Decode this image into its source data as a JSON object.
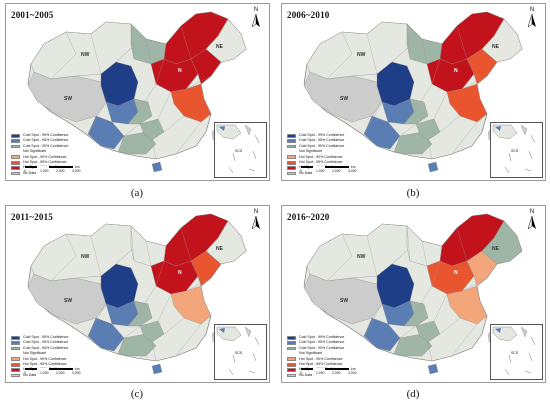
{
  "colors": {
    "cold99": "#1f3e88",
    "cold95": "#5a7db4",
    "cold90": "#9fb5a6",
    "notsig": "#e5e7e1",
    "hot90": "#f3a679",
    "hot95": "#e8552f",
    "hot99": "#c2121b",
    "nodata": "#cccccc",
    "border": "#8a8a8a",
    "ocean": "#ffffff"
  },
  "legend_labels": [
    "Cold Spot - 99% Confidence",
    "Cold Spot - 95% Confidence",
    "Cold Spot - 90% Confidence",
    "Not Significant",
    "Hot Spot - 90% Confidence",
    "Hot Spot - 95% Confidence",
    "Hot Spot - 99% Confidence",
    "No Data"
  ],
  "legend_keys": [
    "cold99",
    "cold95",
    "cold90",
    "notsig",
    "hot90",
    "hot95",
    "hot99",
    "nodata"
  ],
  "north_label": "N",
  "scale": {
    "ticks": [
      "0",
      "1,000",
      "2,000",
      "3,000"
    ],
    "unit": "km"
  },
  "region_labels": {
    "nw": "NW",
    "sw": "SW",
    "ne": "NE",
    "n": "N",
    "sea": "SCS"
  },
  "panels": [
    {
      "id": "a",
      "title": "2001~2005",
      "caption": "(a)",
      "regions": {
        "northwest": "notsig",
        "tibet": "nodata",
        "qinghai": "cold99",
        "sichuan_west": "cold95",
        "sichuan_east": "cold90",
        "inner_mongolia_mid": "cold90",
        "yunnan": "cold95",
        "guangxi": "cold90",
        "hainan": "cold95",
        "ne_core": "hot99",
        "north_plain": "hot99",
        "shandong": "hot99",
        "east_coast": "hot95",
        "central_patch": "cold90",
        "northeast_far": "notsig"
      }
    },
    {
      "id": "b",
      "title": "2006~2010",
      "caption": "(b)",
      "regions": {
        "northwest": "notsig",
        "tibet": "nodata",
        "qinghai": "cold99",
        "sichuan_west": "cold95",
        "sichuan_east": "cold90",
        "inner_mongolia_mid": "cold90",
        "yunnan": "cold95",
        "guangxi": "cold90",
        "hainan": "cold95",
        "ne_core": "hot99",
        "north_plain": "hot99",
        "shandong": "hot95",
        "east_coast": "hot95",
        "central_patch": "cold90",
        "northeast_far": "notsig"
      }
    },
    {
      "id": "c",
      "title": "2011~2015",
      "caption": "(c)",
      "regions": {
        "northwest": "notsig",
        "tibet": "nodata",
        "qinghai": "cold99",
        "sichuan_west": "cold95",
        "sichuan_east": "cold90",
        "inner_mongolia_mid": "notsig",
        "yunnan": "cold95",
        "guangxi": "cold90",
        "hainan": "cold95",
        "ne_core": "hot99",
        "north_plain": "hot99",
        "shandong": "hot95",
        "east_coast": "hot90",
        "central_patch": "cold90",
        "northeast_far": "notsig"
      }
    },
    {
      "id": "d",
      "title": "2016~2020",
      "caption": "(d)",
      "regions": {
        "northwest": "notsig",
        "tibet": "nodata",
        "qinghai": "cold99",
        "sichuan_west": "cold95",
        "sichuan_east": "cold90",
        "inner_mongolia_mid": "notsig",
        "yunnan": "cold95",
        "guangxi": "cold90",
        "hainan": "cold95",
        "ne_core": "hot99",
        "north_plain": "hot95",
        "shandong": "hot90",
        "east_coast": "hot90",
        "central_patch": "cold90",
        "northeast_far": "cold90"
      }
    }
  ]
}
